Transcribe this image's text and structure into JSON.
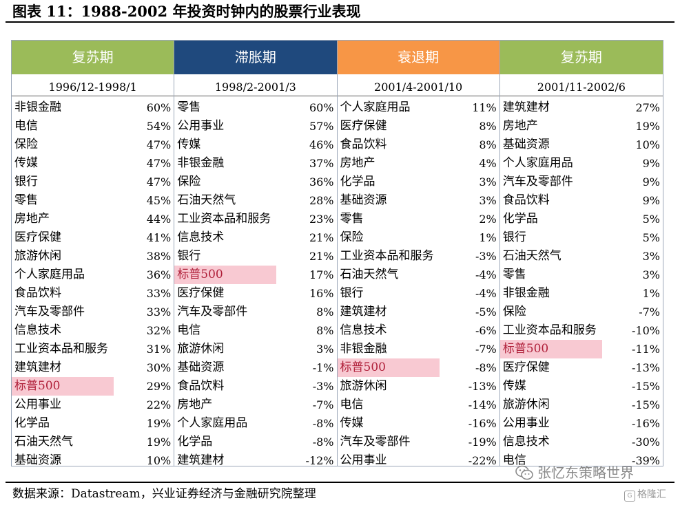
{
  "title": "图表 11：1988-2002 年投资时钟内的股票行业表现",
  "source": "数据来源：Datastream，兴业证券经济与金融研究院整理",
  "watermark": {
    "text": "张忆东策略世界",
    "icon": "wechat-icon"
  },
  "watermark2": {
    "text": "格隆汇",
    "icon": "gzh-icon"
  },
  "colors": {
    "recovery": "#9bbb59",
    "stagflation": "#1f497d",
    "recession": "#f79646",
    "highlight": "#f8c9d2"
  },
  "columns": [
    {
      "phase": "复苏期",
      "color": "#9bbb59",
      "period": "1996/12-1998/1",
      "rows": [
        {
          "name": "非银金融",
          "value": "60%"
        },
        {
          "name": "电信",
          "value": "54%"
        },
        {
          "name": "保险",
          "value": "47%"
        },
        {
          "name": "传媒",
          "value": "47%"
        },
        {
          "name": "银行",
          "value": "47%"
        },
        {
          "name": "零售",
          "value": "45%"
        },
        {
          "name": "房地产",
          "value": "44%"
        },
        {
          "name": "医疗保健",
          "value": "41%"
        },
        {
          "name": "旅游休闲",
          "value": "38%"
        },
        {
          "name": "个人家庭用品",
          "value": "36%"
        },
        {
          "name": "食品饮料",
          "value": "33%"
        },
        {
          "name": "汽车及零部件",
          "value": "33%"
        },
        {
          "name": "信息技术",
          "value": "32%"
        },
        {
          "name": "工业资本品和服务",
          "value": "31%"
        },
        {
          "name": "建筑建材",
          "value": "30%"
        },
        {
          "name": "标普500",
          "value": "29%",
          "highlight": true
        },
        {
          "name": "公用事业",
          "value": "22%"
        },
        {
          "name": "化学品",
          "value": "19%"
        },
        {
          "name": "石油天然气",
          "value": "19%"
        },
        {
          "name": "基础资源",
          "value": "10%"
        }
      ]
    },
    {
      "phase": "滞胀期",
      "color": "#1f497d",
      "period": "1998/2-2001/3",
      "rows": [
        {
          "name": "零售",
          "value": "60%"
        },
        {
          "name": "公用事业",
          "value": "57%"
        },
        {
          "name": "传媒",
          "value": "46%"
        },
        {
          "name": "非银金融",
          "value": "37%"
        },
        {
          "name": "保险",
          "value": "36%"
        },
        {
          "name": "石油天然气",
          "value": "28%"
        },
        {
          "name": "工业资本品和服务",
          "value": "23%"
        },
        {
          "name": "信息技术",
          "value": "21%"
        },
        {
          "name": "银行",
          "value": "21%"
        },
        {
          "name": "标普500",
          "value": "17%",
          "highlight": true
        },
        {
          "name": "医疗保健",
          "value": "16%"
        },
        {
          "name": "汽车及零部件",
          "value": "8%"
        },
        {
          "name": "电信",
          "value": "8%"
        },
        {
          "name": "旅游休闲",
          "value": "3%"
        },
        {
          "name": "基础资源",
          "value": "-1%"
        },
        {
          "name": "食品饮料",
          "value": "-3%"
        },
        {
          "name": "房地产",
          "value": "-7%"
        },
        {
          "name": "个人家庭用品",
          "value": "-8%"
        },
        {
          "name": "化学品",
          "value": "-8%"
        },
        {
          "name": "建筑建材",
          "value": "-12%"
        }
      ]
    },
    {
      "phase": "衰退期",
      "color": "#f79646",
      "period": "2001/4-2001/10",
      "rows": [
        {
          "name": "个人家庭用品",
          "value": "11%"
        },
        {
          "name": "医疗保健",
          "value": "8%"
        },
        {
          "name": "食品饮料",
          "value": "8%"
        },
        {
          "name": "房地产",
          "value": "4%"
        },
        {
          "name": "化学品",
          "value": "3%"
        },
        {
          "name": "基础资源",
          "value": "3%"
        },
        {
          "name": "零售",
          "value": "2%"
        },
        {
          "name": "保险",
          "value": "1%"
        },
        {
          "name": "工业资本品和服务",
          "value": "-3%"
        },
        {
          "name": "石油天然气",
          "value": "-4%"
        },
        {
          "name": "银行",
          "value": "-4%"
        },
        {
          "name": "建筑建材",
          "value": "-5%"
        },
        {
          "name": "信息技术",
          "value": "-6%"
        },
        {
          "name": "非银金融",
          "value": "-7%"
        },
        {
          "name": "标普500",
          "value": "-8%",
          "highlight": true
        },
        {
          "name": "旅游休闲",
          "value": "-13%"
        },
        {
          "name": "电信",
          "value": "-14%"
        },
        {
          "name": "传媒",
          "value": "-16%"
        },
        {
          "name": "汽车及零部件",
          "value": "-19%"
        },
        {
          "name": "公用事业",
          "value": "-22%"
        }
      ]
    },
    {
      "phase": "复苏期",
      "color": "#9bbb59",
      "period": "2001/11-2002/6",
      "rows": [
        {
          "name": "建筑建材",
          "value": "27%"
        },
        {
          "name": "房地产",
          "value": "19%"
        },
        {
          "name": "基础资源",
          "value": "10%"
        },
        {
          "name": "个人家庭用品",
          "value": "9%"
        },
        {
          "name": "汽车及零部件",
          "value": "9%"
        },
        {
          "name": "食品饮料",
          "value": "9%"
        },
        {
          "name": "化学品",
          "value": "5%"
        },
        {
          "name": "银行",
          "value": "5%"
        },
        {
          "name": "石油天然气",
          "value": "3%"
        },
        {
          "name": "零售",
          "value": "3%"
        },
        {
          "name": "非银金融",
          "value": "1%"
        },
        {
          "name": "保险",
          "value": "-7%"
        },
        {
          "name": "工业资本品和服务",
          "value": "-10%"
        },
        {
          "name": "标普500",
          "value": "-11%",
          "highlight": true
        },
        {
          "name": "医疗保健",
          "value": "-13%"
        },
        {
          "name": "传媒",
          "value": "-15%"
        },
        {
          "name": "旅游休闲",
          "value": "-15%"
        },
        {
          "name": "公用事业",
          "value": "-16%"
        },
        {
          "name": "信息技术",
          "value": "-30%"
        },
        {
          "name": "电信",
          "value": "-39%"
        }
      ]
    }
  ]
}
